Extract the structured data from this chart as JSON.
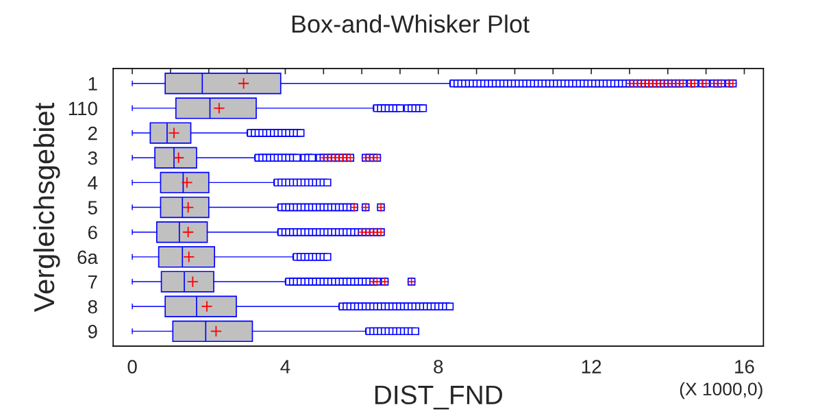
{
  "chart_data": {
    "type": "box",
    "title": "Box-and-Whisker Plot",
    "xlabel": "DIST_FND",
    "ylabel": "Vergleichsgebiet",
    "orientation": "horizontal",
    "annotations": [
      "(X 1000,0)"
    ],
    "categories": [
      "1",
      "110",
      "2",
      "3",
      "4",
      "5",
      "6",
      "6a",
      "7",
      "8",
      "9"
    ],
    "color": "#c0c0c0",
    "xlim": [
      -0.5,
      16.5
    ],
    "xticks": [
      0,
      {
        "value": 1,
        "label": null
      },
      {
        "value": 2,
        "label": null
      },
      {
        "value": 3,
        "label": null
      },
      4,
      {
        "value": 5,
        "label": null
      },
      {
        "value": 6,
        "label": null
      },
      {
        "value": 7,
        "label": null
      },
      8,
      {
        "value": 9,
        "label": null
      },
      {
        "value": 10,
        "label": null
      },
      {
        "value": 11,
        "label": null
      },
      12,
      {
        "value": 13,
        "label": null
      },
      {
        "value": 14,
        "label": null
      },
      {
        "value": 15,
        "label": null
      },
      16
    ],
    "grid": false,
    "legend": false,
    "boxes": [
      {
        "low": 0,
        "q1": 0.86,
        "median": 1.83,
        "q3": 3.88,
        "high": 8.3,
        "mean": 2.91,
        "outliers": [
          8.4,
          8.5,
          8.6,
          8.7,
          8.8,
          8.9,
          9.0,
          9.1,
          9.2,
          9.3,
          9.4,
          9.5,
          9.6,
          9.7,
          9.8,
          9.9,
          10.0,
          10.1,
          10.2,
          10.3,
          10.4,
          10.5,
          10.6,
          10.7,
          10.8,
          10.9,
          11.0,
          11.1,
          11.2,
          11.3,
          11.4,
          11.5,
          11.6,
          11.7,
          11.8,
          11.9,
          12.0,
          12.1,
          12.2,
          12.3,
          12.4,
          12.5,
          12.6,
          12.7,
          12.8,
          12.9,
          13.0,
          13.1,
          13.2,
          13.3,
          13.4,
          13.5,
          13.6,
          13.7,
          13.8,
          13.9,
          14.0,
          14.1,
          14.2,
          14.3,
          14.4,
          14.6,
          14.7,
          14.9,
          15.0,
          15.2,
          15.3,
          15.4,
          15.6,
          15.7
        ]
      },
      {
        "low": 0,
        "q1": 1.14,
        "median": 2.03,
        "q3": 3.24,
        "high": 6.3,
        "mean": 2.27,
        "outliers": [
          6.4,
          6.5,
          6.6,
          6.7,
          6.8,
          6.9,
          7.0,
          7.2,
          7.3,
          7.4,
          7.5,
          7.6
        ]
      },
      {
        "low": 0,
        "q1": 0.47,
        "median": 0.91,
        "q3": 1.53,
        "high": 3.0,
        "mean": 1.09,
        "outliers": [
          3.1,
          3.2,
          3.3,
          3.4,
          3.5,
          3.6,
          3.7,
          3.8,
          3.9,
          4.0,
          4.1,
          4.2,
          4.3,
          4.4
        ]
      },
      {
        "low": 0,
        "q1": 0.59,
        "median": 1.09,
        "q3": 1.68,
        "high": 3.2,
        "mean": 1.21,
        "outliers": [
          3.3,
          3.4,
          3.5,
          3.6,
          3.7,
          3.8,
          3.9,
          4.0,
          4.1,
          4.2,
          4.3,
          4.5,
          4.6,
          4.7,
          4.9,
          5.0,
          5.1,
          5.2,
          5.3,
          5.4,
          5.5,
          5.6,
          5.7,
          6.1,
          6.2,
          6.3,
          6.4
        ]
      },
      {
        "low": 0,
        "q1": 0.74,
        "median": 1.33,
        "q3": 2.0,
        "high": 3.7,
        "mean": 1.43,
        "outliers": [
          3.8,
          3.9,
          4.0,
          4.1,
          4.2,
          4.3,
          4.4,
          4.5,
          4.6,
          4.7,
          4.8,
          4.9,
          5.0,
          5.1
        ]
      },
      {
        "low": 0,
        "q1": 0.74,
        "median": 1.31,
        "q3": 2.0,
        "high": 3.8,
        "mean": 1.46,
        "outliers": [
          3.9,
          4.0,
          4.1,
          4.2,
          4.3,
          4.4,
          4.5,
          4.6,
          4.7,
          4.8,
          4.9,
          5.0,
          5.1,
          5.2,
          5.3,
          5.4,
          5.5,
          5.6,
          5.7,
          5.8,
          6.1,
          6.5
        ]
      },
      {
        "low": 0,
        "q1": 0.64,
        "median": 1.23,
        "q3": 1.96,
        "high": 3.8,
        "mean": 1.46,
        "outliers": [
          3.9,
          4.0,
          4.1,
          4.2,
          4.3,
          4.4,
          4.5,
          4.6,
          4.7,
          4.8,
          4.9,
          5.0,
          5.1,
          5.2,
          5.3,
          5.4,
          5.5,
          5.6,
          5.7,
          5.8,
          5.9,
          6.0,
          6.1,
          6.2,
          6.3,
          6.4,
          6.5
        ]
      },
      {
        "low": 0,
        "q1": 0.69,
        "median": 1.31,
        "q3": 2.15,
        "high": 4.2,
        "mean": 1.48,
        "outliers": [
          4.3,
          4.4,
          4.5,
          4.6,
          4.7,
          4.8,
          4.9,
          5.0,
          5.1
        ]
      },
      {
        "low": 0,
        "q1": 0.76,
        "median": 1.36,
        "q3": 2.13,
        "high": 4.0,
        "mean": 1.58,
        "outliers": [
          4.1,
          4.2,
          4.3,
          4.4,
          4.5,
          4.6,
          4.7,
          4.8,
          4.9,
          5.0,
          5.1,
          5.2,
          5.3,
          5.4,
          5.5,
          5.6,
          5.7,
          5.8,
          5.9,
          6.0,
          6.1,
          6.2,
          6.3,
          6.4,
          6.6,
          7.3
        ]
      },
      {
        "low": 0,
        "q1": 0.86,
        "median": 1.68,
        "q3": 2.72,
        "high": 5.4,
        "mean": 1.95,
        "outliers": [
          5.5,
          5.6,
          5.7,
          5.8,
          5.9,
          6.0,
          6.1,
          6.2,
          6.3,
          6.4,
          6.5,
          6.6,
          6.7,
          6.8,
          6.9,
          7.0,
          7.1,
          7.2,
          7.3,
          7.4,
          7.5,
          7.6,
          7.7,
          7.8,
          7.9,
          8.0,
          8.1,
          8.2,
          8.3
        ]
      },
      {
        "low": 0,
        "q1": 1.06,
        "median": 1.92,
        "q3": 3.14,
        "high": 6.1,
        "mean": 2.19,
        "outliers": [
          6.2,
          6.3,
          6.4,
          6.5,
          6.6,
          6.7,
          6.8,
          6.9,
          7.0,
          7.1,
          7.2,
          7.3,
          7.4
        ]
      }
    ]
  }
}
